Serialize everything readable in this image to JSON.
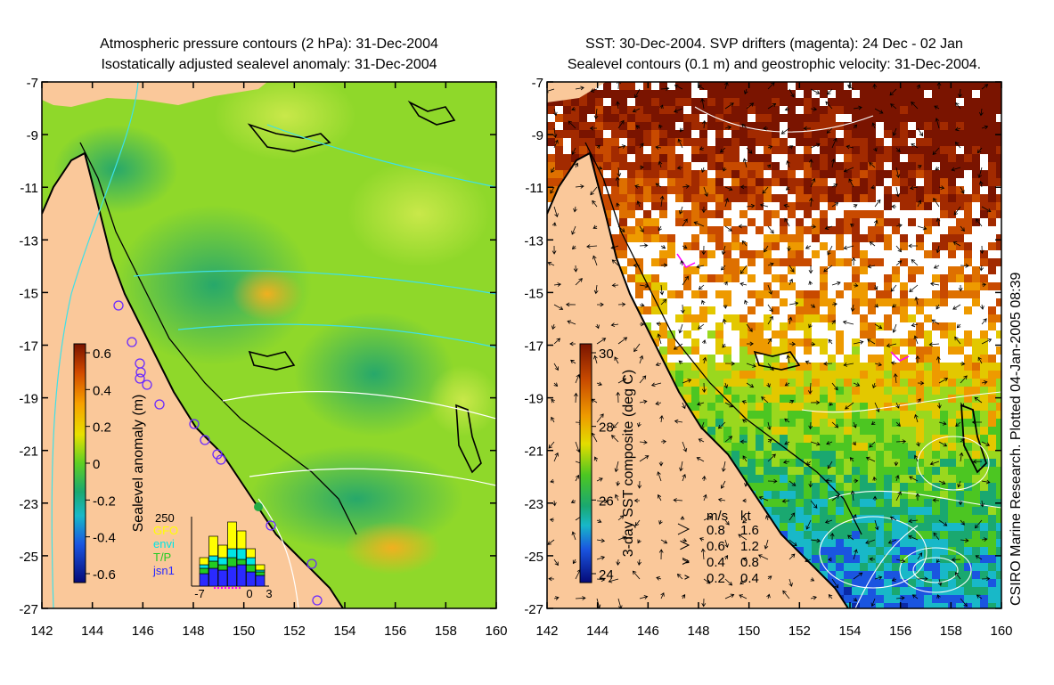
{
  "left_panel": {
    "title_line1": "Atmospheric pressure contours (2 hPa): 31-Dec-2004",
    "title_line2": "Isostatically adjusted sealevel anomaly: 31-Dec-2004",
    "colorbar_label": "Sealevel anomaly (m)",
    "colorbar_ticks": [
      "0.6",
      "0.4",
      "0.2",
      "0",
      "-0.2",
      "-0.4",
      "-0.6"
    ],
    "inset": {
      "y_tick": "250",
      "legend": [
        {
          "label": "GFO",
          "color": "#ffff00"
        },
        {
          "label": "envi",
          "color": "#00e5e5"
        },
        {
          "label": "T/P",
          "color": "#22cc22"
        },
        {
          "label": "jsn1",
          "color": "#2a2aff"
        }
      ],
      "x_ticks": [
        "-7",
        "0",
        "3"
      ]
    }
  },
  "right_panel": {
    "title_line1": "SST: 30-Dec-2004. SVP drifters (magenta): 24 Dec - 02 Jan",
    "title_line2": "Sealevel contours (0.1 m) and geostrophic velocity: 31-Dec-2004.",
    "colorbar_label": "3-day SST composite (deg C)",
    "colorbar_ticks": [
      "30",
      "28",
      "26",
      "24"
    ],
    "velocity_legend": {
      "header_ms": "m/s",
      "header_kt": "kt",
      "rows": [
        {
          "ms": "0.8",
          "kt": "1.6"
        },
        {
          "ms": "0.6",
          "kt": "1.2"
        },
        {
          "ms": "0.4",
          "kt": "0.8"
        },
        {
          "ms": "0.2",
          "kt": "0.4"
        }
      ]
    },
    "credit": "CSIRO Marine Research. Plotted 04-Jan-2005 08:39"
  },
  "axes": {
    "y_ticks": [
      "-7",
      "-9",
      "-11",
      "-13",
      "-15",
      "-17",
      "-19",
      "-21",
      "-23",
      "-25",
      "-27"
    ],
    "x_ticks": [
      "142",
      "144",
      "146",
      "148",
      "150",
      "152",
      "154",
      "156",
      "158",
      "160"
    ]
  },
  "colors": {
    "land": "#fac89a",
    "ssa_low": "#1a8a6a",
    "ssa_mid": "#8fd82a",
    "sst_warm": "#c85a00",
    "sst_cool": "#1f5fd8",
    "contour_cyan": "#3ee0e8",
    "drifter_magenta": "#ff00ff"
  }
}
